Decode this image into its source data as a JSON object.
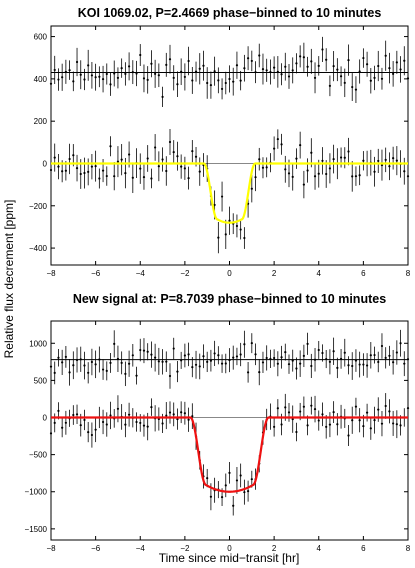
{
  "figure": {
    "ylabel": "Relative flux decrement [ppm]",
    "xlabel": "Time since mid−transit [hr]"
  },
  "chart_data": [
    {
      "type": "scatter",
      "title": "KOI 1069.02, P=2.4669 phase−binned to 10 minutes",
      "xlim": [
        -8,
        8
      ],
      "ylim": [
        -480,
        650
      ],
      "x_ticks": [
        -8,
        -6,
        -4,
        -2,
        0,
        2,
        4,
        6,
        8
      ],
      "y_ticks": [
        -400,
        -200,
        0,
        200,
        400,
        600
      ],
      "bins_per_hour": 6,
      "offset_series": {
        "baseline": 430,
        "scatter": 70,
        "error": 60,
        "seed": 11
      },
      "transit_series": {
        "depth": 280,
        "half_width": 1.15,
        "ingress": 0.6,
        "scatter": 80,
        "error": 60,
        "seed": 23
      },
      "fit": {
        "color": "#ffff00",
        "depth": 280,
        "half_width": 1.15,
        "ingress": 0.6
      },
      "grid": false
    },
    {
      "type": "scatter",
      "title": "New signal at: P=8.7039 phase−binned to 10 minutes",
      "xlim": [
        -8,
        8
      ],
      "ylim": [
        -1650,
        1300
      ],
      "x_ticks": [
        -8,
        -6,
        -4,
        -2,
        0,
        2,
        4,
        6,
        8
      ],
      "y_ticks": [
        -1500,
        -1000,
        -500,
        0,
        500,
        1000
      ],
      "bins_per_hour": 6,
      "offset_series": {
        "baseline": 780,
        "scatter": 170,
        "error": 150,
        "seed": 37
      },
      "transit_series": {
        "depth": 1000,
        "half_width": 1.75,
        "ingress": 0.7,
        "scatter": 170,
        "error": 150,
        "seed": 53
      },
      "fit": {
        "color": "#ee1111",
        "depth": 1000,
        "half_width": 1.75,
        "ingress": 0.7
      },
      "grid": false
    }
  ]
}
